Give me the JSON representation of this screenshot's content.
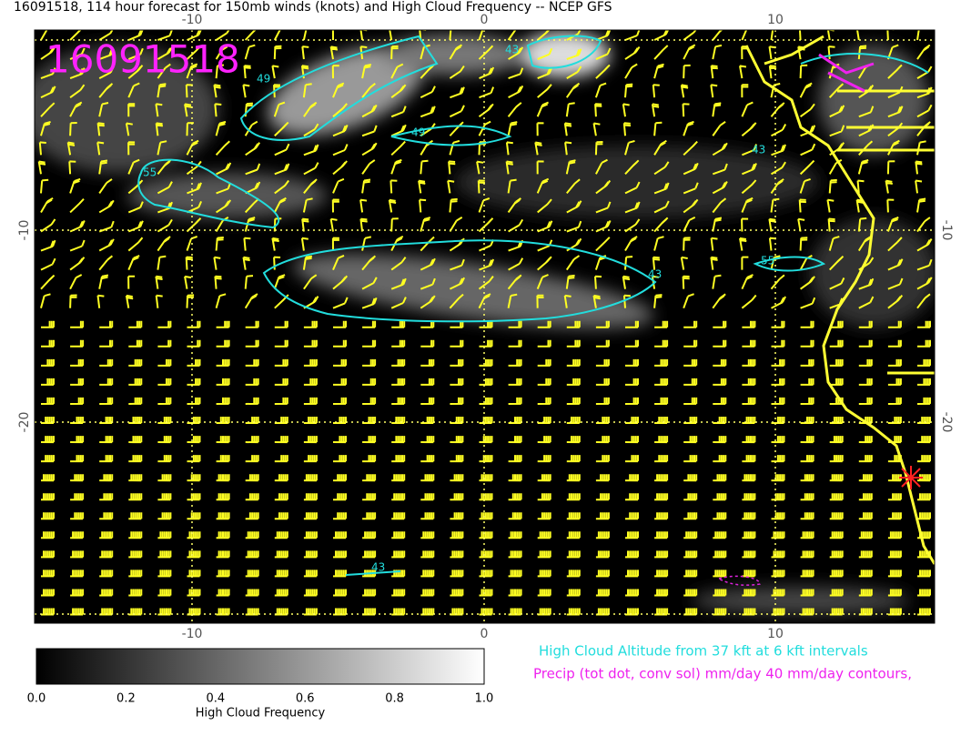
{
  "title": "16091518, 114 hour forecast for 150mb winds (knots) and High Cloud Frequency -- NCEP GFS",
  "stamp": "16091518",
  "map": {
    "x_tick_labels": [
      "-10",
      "0",
      "10"
    ],
    "y_tick_labels": [
      "-10",
      "-20"
    ],
    "contour_labels": [
      "49",
      "43",
      "49",
      "55",
      "43",
      "43",
      "55",
      "43"
    ]
  },
  "colorbar": {
    "tick_labels": [
      "0.0",
      "0.2",
      "0.4",
      "0.6",
      "0.8",
      "1.0"
    ],
    "label": "High Cloud Frequency"
  },
  "notes": [
    "High Cloud Altitude from 37 kft at 6 kft intervals",
    "Precip (tot dot, conv sol) mm/day 40 mm/day contours,"
  ]
}
